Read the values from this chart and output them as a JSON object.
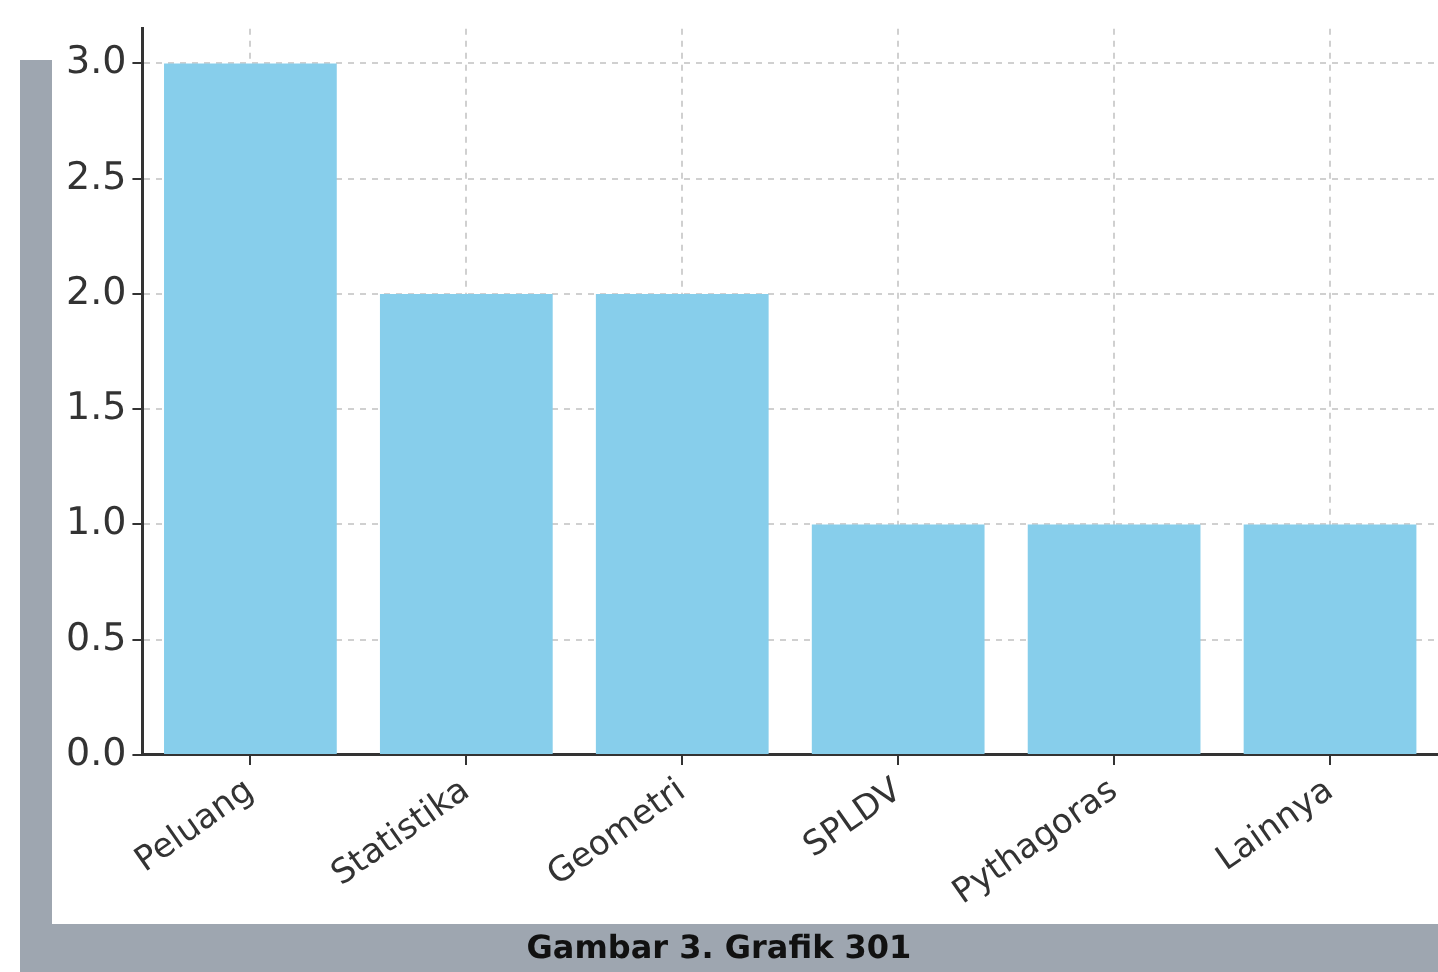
{
  "chart_data": {
    "type": "bar",
    "categories": [
      "Peluang",
      "Statistika",
      "Geometri",
      "SPLDV",
      "Pythagoras",
      "Lainnya"
    ],
    "values": [
      3,
      2,
      2,
      1,
      1,
      1
    ],
    "color": "#87ceeb",
    "ylim": [
      0,
      3.15
    ],
    "yticks": [
      {
        "value": 0,
        "label": "0.0"
      },
      0.5,
      {
        "value": 1,
        "label": "1.0"
      },
      1.5,
      {
        "value": 2,
        "label": "2.0"
      },
      2.5,
      {
        "value": 3,
        "label": "3.0"
      }
    ],
    "grid": true,
    "annotations": [
      "Gambar 3. Grafik 301"
    ]
  }
}
